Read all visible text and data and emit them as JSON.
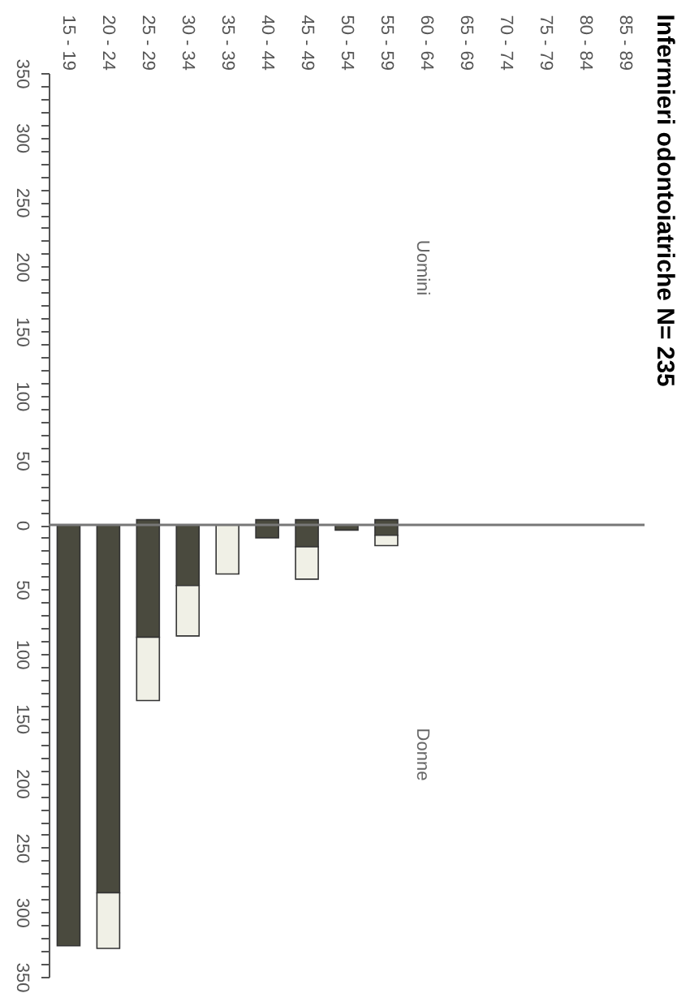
{
  "chart_data": {
    "type": "bar",
    "stacked": true,
    "title": "Infermieri odontoiatriche N= 235",
    "annotations": [
      "Uomini",
      "Donne"
    ],
    "categories": [
      "15 - 19",
      "20 - 24",
      "25 - 29",
      "30 - 34",
      "35 - 39",
      "40 - 44",
      "45 - 49",
      "50 - 54",
      "55 - 59",
      "60 - 64",
      "65 - 69",
      "70 - 74",
      "75 - 79",
      "80 - 84",
      "85 - 89"
    ],
    "series": [
      {
        "color": "#4a4a3e",
        "values": [
          -326,
          -285,
          -87,
          -47,
          null,
          -10,
          -17,
          -4,
          -8,
          null,
          null,
          null,
          null,
          null,
          null
        ]
      },
      {
        "color": "#f0f0e6",
        "values": [
          null,
          -43,
          -49,
          -39,
          -38,
          null,
          -25,
          null,
          -8,
          null,
          null,
          null,
          null,
          null,
          null
        ]
      },
      {
        "color": "#4a4a3e",
        "values": [
          null,
          null,
          4,
          null,
          null,
          4,
          4,
          null,
          4,
          null,
          null,
          null,
          null,
          null,
          null
        ]
      }
    ],
    "ylim": [
      -350,
      350
    ],
    "yticks": [
      {
        "value": 350,
        "label": "350"
      },
      {
        "value": 340,
        "label": null
      },
      {
        "value": 330,
        "label": null
      },
      {
        "value": 320,
        "label": null
      },
      {
        "value": 310,
        "label": null
      },
      {
        "value": 300,
        "label": "300"
      },
      {
        "value": 290,
        "label": null
      },
      {
        "value": 280,
        "label": null
      },
      {
        "value": 270,
        "label": null
      },
      {
        "value": 260,
        "label": null
      },
      {
        "value": 250,
        "label": "250"
      },
      {
        "value": 240,
        "label": null
      },
      {
        "value": 230,
        "label": null
      },
      {
        "value": 220,
        "label": null
      },
      {
        "value": 210,
        "label": null
      },
      {
        "value": 200,
        "label": "200"
      },
      {
        "value": 190,
        "label": null
      },
      {
        "value": 180,
        "label": null
      },
      {
        "value": 170,
        "label": null
      },
      {
        "value": 160,
        "label": null
      },
      {
        "value": 150,
        "label": "150"
      },
      {
        "value": 140,
        "label": null
      },
      {
        "value": 130,
        "label": null
      },
      {
        "value": 120,
        "label": null
      },
      {
        "value": 110,
        "label": null
      },
      {
        "value": 100,
        "label": "100"
      },
      {
        "value": 90,
        "label": null
      },
      {
        "value": 80,
        "label": null
      },
      {
        "value": 70,
        "label": null
      },
      {
        "value": 60,
        "label": null
      },
      {
        "value": 50,
        "label": "50"
      },
      {
        "value": 40,
        "label": null
      },
      {
        "value": 30,
        "label": null
      },
      {
        "value": 20,
        "label": null
      },
      {
        "value": 10,
        "label": null
      },
      {
        "value": 0,
        "label": "0"
      },
      {
        "value": -10,
        "label": null
      },
      {
        "value": -20,
        "label": null
      },
      {
        "value": -30,
        "label": null
      },
      {
        "value": -40,
        "label": null
      },
      {
        "value": -50,
        "label": "50"
      },
      {
        "value": -60,
        "label": null
      },
      {
        "value": -70,
        "label": null
      },
      {
        "value": -80,
        "label": null
      },
      {
        "value": -90,
        "label": null
      },
      {
        "value": -100,
        "label": "100"
      },
      {
        "value": -110,
        "label": null
      },
      {
        "value": -120,
        "label": null
      },
      {
        "value": -130,
        "label": null
      },
      {
        "value": -140,
        "label": null
      },
      {
        "value": -150,
        "label": "150"
      },
      {
        "value": -160,
        "label": null
      },
      {
        "value": -170,
        "label": null
      },
      {
        "value": -180,
        "label": null
      },
      {
        "value": -190,
        "label": null
      },
      {
        "value": -200,
        "label": "200"
      },
      {
        "value": -210,
        "label": null
      },
      {
        "value": -220,
        "label": null
      },
      {
        "value": -230,
        "label": null
      },
      {
        "value": -240,
        "label": null
      },
      {
        "value": -250,
        "label": "250"
      },
      {
        "value": -260,
        "label": null
      },
      {
        "value": -270,
        "label": null
      },
      {
        "value": -280,
        "label": null
      },
      {
        "value": -290,
        "label": null
      },
      {
        "value": -300,
        "label": "300"
      },
      {
        "value": -310,
        "label": null
      },
      {
        "value": -320,
        "label": null
      },
      {
        "value": -330,
        "label": null
      },
      {
        "value": -340,
        "label": null
      },
      {
        "value": -350,
        "label": "350"
      }
    ],
    "ref_lines": [
      {
        "axis": "y",
        "value": 0,
        "color": "#777777"
      }
    ],
    "grid": false,
    "legend": false
  }
}
